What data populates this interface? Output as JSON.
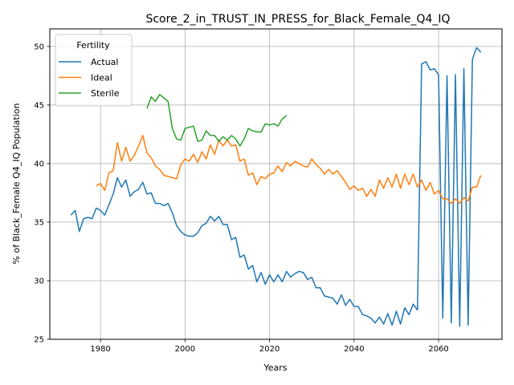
{
  "chart_data": {
    "type": "line",
    "title": "Score_2_in_TRUST_IN_PRESS_for_Black_Female_Q4_IQ",
    "xlabel": "Years",
    "ylabel": "% of Black_Female Q4_IQ Population",
    "xlim": [
      1968,
      2075
    ],
    "ylim": [
      25,
      51.5
    ],
    "xticks": [
      1980,
      2000,
      2020,
      2040,
      2060
    ],
    "yticks": [
      25,
      30,
      35,
      40,
      45,
      50
    ],
    "grid": true,
    "legend": {
      "title": "Fertility",
      "placement": "top-left"
    },
    "series": [
      {
        "name": "Actual",
        "color": "#1f77b4",
        "x": [
          1973,
          1974,
          1975,
          1976,
          1977,
          1978,
          1979,
          1980,
          1981,
          1982,
          1983,
          1984,
          1985,
          1986,
          1987,
          1988,
          1989,
          1990,
          1991,
          1992,
          1993,
          1994,
          1995,
          1996,
          1997,
          1998,
          1999,
          2000,
          2001,
          2002,
          2003,
          2004,
          2005,
          2006,
          2007,
          2008,
          2009,
          2010,
          2011,
          2012,
          2013,
          2014,
          2015,
          2016,
          2017,
          2018,
          2019,
          2020,
          2021,
          2022,
          2023,
          2024,
          2025,
          2026,
          2027,
          2028,
          2029,
          2030,
          2031,
          2032,
          2033,
          2034,
          2035,
          2036,
          2037,
          2038,
          2039,
          2040,
          2041,
          2042,
          2043,
          2044,
          2045,
          2046,
          2047,
          2048,
          2049,
          2050,
          2051,
          2052,
          2053,
          2054,
          2055,
          2056,
          2057,
          2058,
          2059,
          2060,
          2061,
          2062,
          2063,
          2064,
          2065,
          2066,
          2067,
          2068,
          2069,
          2070
        ],
        "y": [
          35.6,
          36.0,
          34.2,
          35.3,
          35.4,
          35.3,
          36.2,
          36.0,
          35.6,
          36.5,
          37.4,
          38.8,
          38.0,
          38.6,
          37.2,
          37.6,
          37.8,
          38.4,
          37.4,
          37.5,
          36.6,
          36.6,
          36.4,
          36.6,
          35.8,
          34.7,
          34.2,
          33.9,
          33.8,
          33.8,
          34.1,
          34.7,
          34.9,
          35.5,
          35.1,
          35.5,
          34.8,
          34.8,
          33.5,
          33.7,
          32.0,
          32.2,
          31.0,
          31.3,
          29.9,
          30.7,
          29.7,
          30.5,
          29.9,
          30.5,
          29.9,
          30.8,
          30.3,
          30.6,
          30.8,
          30.7,
          30.1,
          30.3,
          29.4,
          29.4,
          28.7,
          28.6,
          28.5,
          28.0,
          28.8,
          27.9,
          28.4,
          27.8,
          27.8,
          27.1,
          27.0,
          26.8,
          26.4,
          26.9,
          26.3,
          27.2,
          26.2,
          27.4,
          26.3,
          27.7,
          27.1,
          28.0,
          27.5,
          48.5,
          48.7,
          48.0,
          48.1,
          47.6,
          26.8,
          47.5,
          26.4,
          47.6,
          26.1,
          48.1,
          26.2,
          48.9,
          49.9,
          49.5
        ]
      },
      {
        "name": "Ideal",
        "color": "#ff7f0e",
        "x": [
          1979,
          1980,
          1981,
          1982,
          1983,
          1984,
          1985,
          1986,
          1987,
          1988,
          1989,
          1990,
          1991,
          1992,
          1993,
          1994,
          1995,
          1996,
          1997,
          1998,
          1999,
          2000,
          2001,
          2002,
          2003,
          2004,
          2005,
          2006,
          2007,
          2008,
          2009,
          2010,
          2011,
          2012,
          2013,
          2014,
          2015,
          2016,
          2017,
          2018,
          2019,
          2020,
          2021,
          2022,
          2023,
          2024,
          2025,
          2026,
          2027,
          2028,
          2029,
          2030,
          2031,
          2032,
          2033,
          2034,
          2035,
          2036,
          2037,
          2038,
          2039,
          2040,
          2041,
          2042,
          2043,
          2044,
          2045,
          2046,
          2047,
          2048,
          2049,
          2050,
          2051,
          2052,
          2053,
          2054,
          2055,
          2056,
          2057,
          2058,
          2059,
          2060,
          2061,
          2062,
          2063,
          2064,
          2065,
          2066,
          2067,
          2068,
          2069,
          2070
        ],
        "y": [
          38.1,
          38.3,
          37.7,
          39.2,
          39.4,
          41.8,
          40.2,
          41.4,
          40.2,
          40.7,
          41.5,
          42.4,
          40.9,
          40.5,
          39.8,
          39.5,
          39.0,
          38.9,
          38.8,
          38.7,
          39.9,
          40.4,
          40.2,
          40.8,
          40.1,
          41.0,
          40.4,
          41.6,
          40.8,
          42.0,
          41.5,
          42.0,
          41.5,
          41.6,
          40.2,
          40.4,
          39.0,
          39.2,
          38.2,
          38.9,
          38.7,
          39.1,
          39.2,
          39.8,
          39.3,
          40.1,
          39.8,
          40.2,
          40.0,
          39.8,
          39.7,
          40.4,
          39.9,
          39.6,
          39.1,
          39.5,
          39.1,
          39.4,
          38.9,
          38.4,
          37.8,
          38.1,
          37.7,
          37.9,
          37.2,
          37.8,
          37.2,
          38.6,
          37.9,
          38.8,
          38.0,
          39.1,
          37.9,
          39.1,
          38.2,
          39.1,
          38.0,
          38.6,
          37.7,
          38.4,
          37.4,
          37.7,
          37.0,
          37.0,
          36.6,
          37.0,
          36.6,
          37.1,
          36.8,
          38.0,
          38.0,
          39.0
        ]
      },
      {
        "name": "Sterile",
        "color": "#2ca02c",
        "x": [
          1991,
          1992,
          1993,
          1994,
          1995,
          1996,
          1997,
          1998,
          1999,
          2000,
          2001,
          2002,
          2003,
          2004,
          2005,
          2006,
          2007,
          2008,
          2009,
          2010,
          2011,
          2012,
          2013,
          2014,
          2015,
          2016,
          2017,
          2018,
          2019,
          2020,
          2021,
          2022,
          2023,
          2024
        ],
        "y": [
          44.7,
          45.7,
          45.3,
          45.9,
          45.6,
          45.3,
          43.0,
          42.1,
          42.0,
          43.0,
          43.1,
          43.2,
          41.9,
          42.0,
          42.8,
          42.4,
          42.4,
          41.9,
          42.3,
          42.0,
          42.4,
          42.1,
          41.5,
          42.1,
          43.0,
          42.8,
          42.7,
          42.7,
          43.4,
          43.3,
          43.4,
          43.2,
          43.8,
          44.1
        ]
      }
    ]
  }
}
